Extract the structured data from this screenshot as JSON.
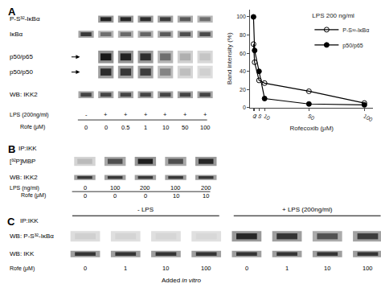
{
  "chart_data": [
    {
      "type": "line",
      "x_label": "Rofecoxib (μM)",
      "y_label": "Band intensity (%)",
      "legend_title": "LPS 200 ng/ml",
      "x": [
        0,
        1,
        5,
        10,
        50,
        100
      ],
      "series": [
        {
          "name": "P-S³²-IκBα",
          "color": "black",
          "marker": "circle-open",
          "values": [
            70,
            50,
            30,
            27,
            18,
            5
          ]
        },
        {
          "name": "p50/p65",
          "color": "black",
          "marker": "circle",
          "values": [
            100,
            63,
            40,
            10,
            4,
            3
          ]
        }
      ],
      "xlim": [
        -3,
        108
      ],
      "ylim": [
        0,
        108
      ],
      "xticks": [
        0,
        1,
        5,
        10,
        50,
        100
      ],
      "yticks": [
        0,
        20,
        40,
        60,
        80,
        100
      ],
      "grid": false,
      "legend": "upper right"
    },
    {
      "type": "blot",
      "title": "A",
      "series": [
        {
          "name": "P-S³²-IκBα",
          "values": [
            0,
            0.9,
            0.88,
            0.85,
            0.78,
            0.65,
            0.55
          ]
        },
        {
          "name": "IκBα",
          "values": [
            0.8,
            0.55,
            0.58,
            0.6,
            0.65,
            0.7,
            0.72
          ]
        },
        {
          "name": "p50/p65",
          "marker": "arrow",
          "values": [
            0,
            0.95,
            0.9,
            0.85,
            0.55,
            0.25,
            0.15
          ]
        },
        {
          "name": "p50/p50",
          "marker": "arrow",
          "values": [
            0,
            0.85,
            0.8,
            0.78,
            0.45,
            0.18,
            0.1
          ]
        },
        {
          "name": "WB: IKK2",
          "values": [
            0.75,
            0.75,
            0.75,
            0.75,
            0.75,
            0.75,
            0.75
          ]
        }
      ],
      "lanes": [
        {
          "name": "LPS (200ng/ml)",
          "values": [
            "-",
            "+",
            "+",
            "+",
            "+",
            "+",
            "+"
          ]
        },
        {
          "name": "Rofe (μM)",
          "values": [
            "0",
            "0",
            "0.5",
            "1",
            "10",
            "50",
            "100"
          ]
        }
      ]
    },
    {
      "type": "blot",
      "title": "B",
      "subtitle": "IP:IKK",
      "series": [
        {
          "name": "[³²P]MBP",
          "values": [
            0.2,
            0.7,
            0.92,
            0.7,
            0.88
          ]
        },
        {
          "name": "WB: IKK2",
          "values": [
            0.8,
            0.8,
            0.8,
            0.8,
            0.8
          ]
        }
      ],
      "lanes": [
        {
          "name": "LPS (ng/ml)",
          "values": [
            "0",
            "100",
            "200",
            "100",
            "200"
          ]
        },
        {
          "name": "Rofe (μM)",
          "values": [
            "0",
            "0",
            "0",
            "10",
            "10"
          ]
        }
      ]
    },
    {
      "type": "blot",
      "title": "C",
      "subtitle": "IP:IKK",
      "groups": [
        "- LPS",
        "- LPS",
        "- LPS",
        "- LPS",
        "+ LPS (200ng/ml)",
        "+ LPS (200ng/ml)",
        "+ LPS (200ng/ml)",
        "+ LPS (200ng/ml)"
      ],
      "series": [
        {
          "name": "WB: P-S³²-IκBα",
          "values": [
            0.1,
            0.08,
            0.07,
            0.06,
            0.88,
            0.82,
            0.68,
            0.78
          ]
        },
        {
          "name": "WB: IKK",
          "values": [
            0.82,
            0.82,
            0.82,
            0.82,
            0.82,
            0.82,
            0.82,
            0.82
          ]
        }
      ],
      "lanes": [
        {
          "name": "Rofe (μM)",
          "values": [
            "0",
            "1",
            "10",
            "100",
            "0",
            "1",
            "10",
            "100"
          ]
        }
      ],
      "annotations": [
        "Added in vitro"
      ]
    }
  ]
}
